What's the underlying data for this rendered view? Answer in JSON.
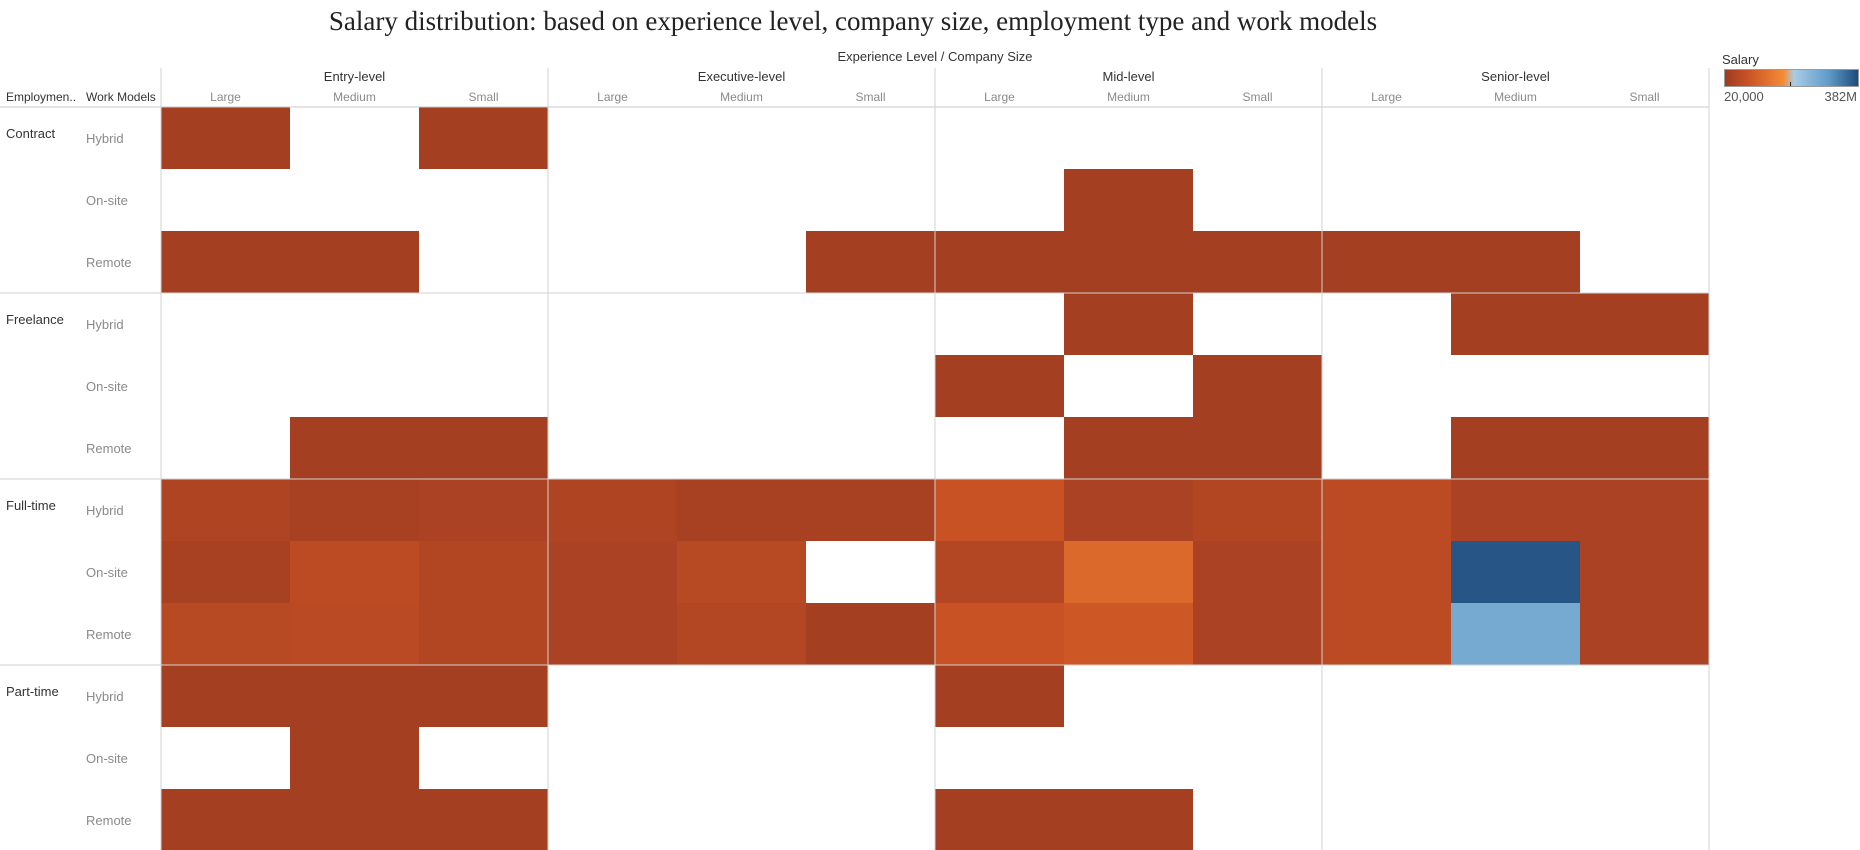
{
  "title": "Salary distribution: based on experience level, company size, employment type and work models",
  "chart_data": {
    "type": "heatmap",
    "column_header": "Experience Level  /  Company Size",
    "row_header_1": "Employmen..",
    "row_header_2": "Work Models",
    "experience_levels": [
      "Entry-level",
      "Executive-level",
      "Mid-level",
      "Senior-level"
    ],
    "company_sizes": [
      "Large",
      "Medium",
      "Small"
    ],
    "employment_types": [
      "Contract",
      "Freelance",
      "Full-time",
      "Part-time"
    ],
    "work_models": [
      "Hybrid",
      "On-site",
      "Remote"
    ],
    "color_scale": {
      "title": "Salary",
      "min_label": "20,000",
      "max_label": "382M",
      "stops": [
        "#9e3b22",
        "#c85224",
        "#f58b35",
        "#a9cce4",
        "#5f9bc9",
        "#1e4a7b"
      ]
    },
    "value_unit": "normalized intensity 0 (20,000) to 1 (382M); null = no data",
    "values": [
      [
        [
          0.03,
          null,
          0.03,
          null,
          null,
          null,
          null,
          null,
          null,
          null,
          null,
          null
        ],
        [
          null,
          null,
          null,
          null,
          null,
          null,
          null,
          0.03,
          null,
          null,
          null,
          null
        ],
        [
          0.03,
          0.03,
          null,
          null,
          null,
          0.03,
          0.03,
          0.03,
          0.03,
          0.03,
          0.03,
          null
        ]
      ],
      [
        [
          null,
          null,
          null,
          null,
          null,
          null,
          null,
          0.03,
          null,
          null,
          0.03,
          0.03
        ],
        [
          null,
          null,
          null,
          null,
          null,
          null,
          0.03,
          null,
          0.03,
          null,
          null,
          null
        ],
        [
          null,
          0.03,
          0.03,
          null,
          null,
          null,
          null,
          0.03,
          0.03,
          null,
          0.03,
          0.03
        ]
      ],
      [
        [
          0.07,
          0.04,
          0.05,
          0.07,
          0.04,
          0.04,
          0.17,
          0.05,
          0.08,
          0.12,
          0.05,
          0.05
        ],
        [
          0.04,
          0.12,
          0.08,
          0.05,
          0.1,
          null,
          0.09,
          0.28,
          0.05,
          0.12,
          0.97,
          0.05
        ],
        [
          0.1,
          0.11,
          0.08,
          0.05,
          0.09,
          0.03,
          0.17,
          0.2,
          0.05,
          0.12,
          0.7,
          0.05
        ]
      ],
      [
        [
          0.03,
          0.03,
          0.03,
          null,
          null,
          null,
          0.03,
          null,
          null,
          null,
          null,
          null
        ],
        [
          null,
          0.03,
          null,
          null,
          null,
          null,
          null,
          null,
          null,
          null,
          null,
          null
        ],
        [
          0.03,
          0.03,
          0.03,
          null,
          null,
          null,
          0.03,
          0.03,
          null,
          null,
          null,
          null
        ]
      ]
    ]
  }
}
